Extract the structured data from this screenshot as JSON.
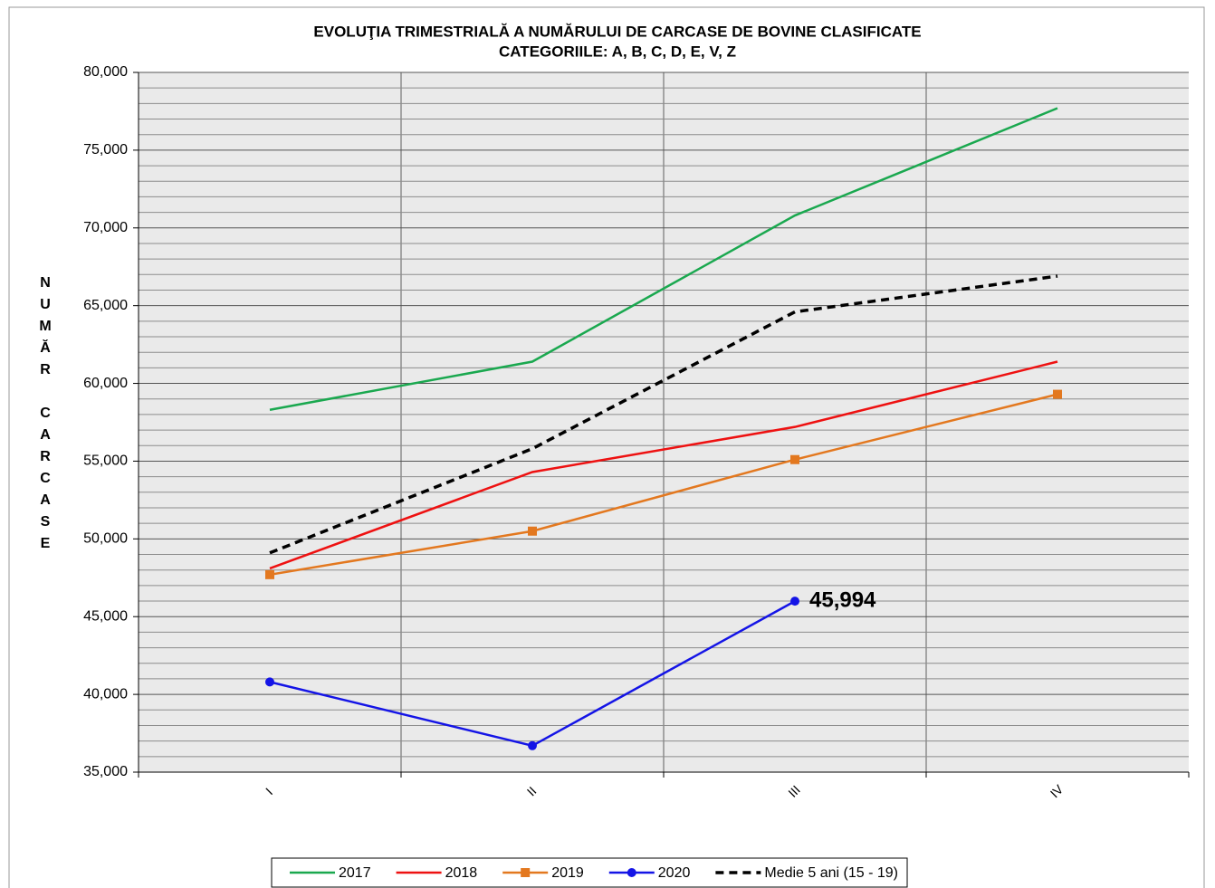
{
  "chart_data": {
    "type": "line",
    "title": "EVOLUŢIA  TRIMESTRIALĂ  A NUMĂRULUI  DE  CARCASE DE BOVINE  CLASIFICATE",
    "subtitle": "CATEGORIILE: A, B, C, D, E, V, Z",
    "y_label": "NUMĂR CARCASE",
    "categories": [
      "I",
      "II",
      "III",
      "IV"
    ],
    "series": [
      {
        "name": "2017",
        "color": "#1aa84f",
        "marker": "none",
        "dash": false,
        "values": [
          58300,
          61400,
          70800,
          77700
        ]
      },
      {
        "name": "2018",
        "color": "#ee1111",
        "marker": "none",
        "dash": false,
        "values": [
          48100,
          54300,
          57200,
          61400
        ]
      },
      {
        "name": "2019",
        "color": "#e3781f",
        "marker": "square",
        "dash": false,
        "values": [
          47700,
          50500,
          55100,
          59300
        ]
      },
      {
        "name": "2020",
        "color": "#1414e6",
        "marker": "circle",
        "dash": false,
        "values": [
          40800,
          36700,
          45994,
          null
        ],
        "value_labels": [
          null,
          null,
          "45,994",
          null
        ]
      },
      {
        "name": "Medie 5 ani (15 - 19)",
        "color": "#000000",
        "marker": "none",
        "dash": true,
        "values": [
          49100,
          55800,
          64600,
          66900
        ]
      }
    ],
    "ylim": [
      35000,
      80000
    ],
    "yticks": [
      {
        "value": 35000,
        "label": "35,000"
      },
      {
        "value": 40000,
        "label": "40,000"
      },
      {
        "value": 45000,
        "label": "45,000"
      },
      {
        "value": 50000,
        "label": "50,000"
      },
      {
        "value": 55000,
        "label": "55,000"
      },
      {
        "value": 60000,
        "label": "60,000"
      },
      {
        "value": 65000,
        "label": "65,000"
      },
      {
        "value": 70000,
        "label": "70,000"
      },
      {
        "value": 75000,
        "label": "75,000"
      },
      {
        "value": 80000,
        "label": "80,000"
      }
    ],
    "grid": true,
    "legend": "bottom"
  }
}
